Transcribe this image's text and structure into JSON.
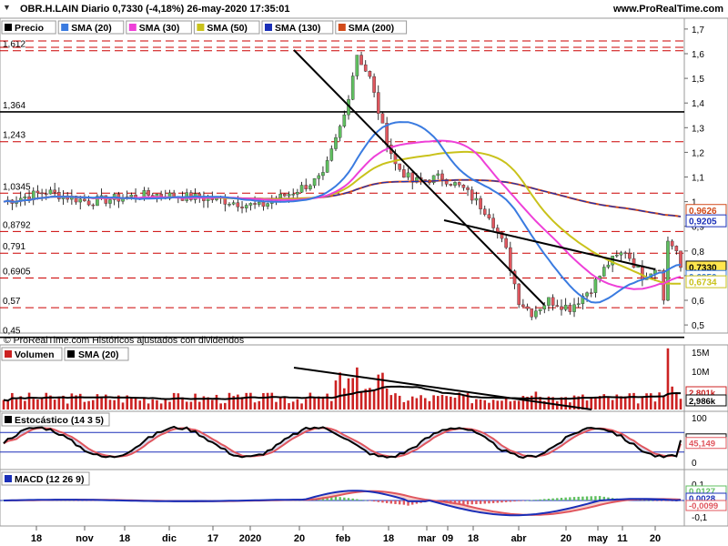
{
  "header": {
    "title": "OBR.H.LAIN Diario 0,7330 (-4,18%) 26-may-2020 17:35:01",
    "site": "www.ProRealTime.com",
    "menu_icon": "caret-down-icon"
  },
  "colors": {
    "price_up": "#5fbf5f",
    "price_down": "#e0565e",
    "sma20": "#3a7be0",
    "sma30": "#ee40d8",
    "sma50": "#c9c21b",
    "sma130": "#1a2fb8",
    "sma200": "#d14a1a",
    "hline_red": "#cc0000",
    "volume_bar": "#cc2222",
    "volume_sma": "#000000",
    "stoch_k": "#000000",
    "stoch_d": "#e0565e",
    "macd_line": "#1a2fb8",
    "macd_signal": "#e0565e"
  },
  "price_panel": {
    "legend": [
      "Precio",
      "SMA (20)",
      "SMA (30)",
      "SMA (50)",
      "SMA (130)",
      "SMA (200)"
    ],
    "yticks": [
      "1,7",
      "1,6",
      "1,5",
      "1,4",
      "1,3",
      "1,2",
      "1,1",
      "1",
      "0,9",
      "0,8",
      "0,7",
      "0,6",
      "0,5"
    ],
    "left_levels": [
      {
        "label": "1,612"
      },
      {
        "label": "1,364"
      },
      {
        "label": "1,243"
      },
      {
        "label": "1,0345"
      },
      {
        "label": "0,8792"
      },
      {
        "label": "0,791"
      },
      {
        "label": "0,6905"
      },
      {
        "label": "0,57"
      },
      {
        "label": "0,45"
      }
    ],
    "right_badges": [
      {
        "label": "0,9626"
      },
      {
        "label": "0,9205"
      },
      {
        "label": "0,7330"
      },
      {
        "label": "0,6950"
      },
      {
        "label": "0,6734"
      }
    ],
    "footer": "© ProRealTime.com Históricos ajustados con dividendos"
  },
  "volume_panel": {
    "legend": [
      "Volumen",
      "SMA (20)"
    ],
    "yticks": [
      "15M",
      "10M",
      "5M"
    ],
    "right_badges": [
      {
        "label": "2,801k"
      },
      {
        "label": "2,986k"
      }
    ]
  },
  "stoch_panel": {
    "legend": [
      "Estocástico (14 3 5)"
    ],
    "yticks": [
      "100",
      "0"
    ],
    "right_badges": [
      {
        "label": "56,083"
      },
      {
        "label": "45,149"
      }
    ]
  },
  "macd_panel": {
    "legend": [
      "MACD (12 26 9)"
    ],
    "yticks": [
      "0,1",
      "-0,1"
    ],
    "right_badges": [
      {
        "label": "0,0127"
      },
      {
        "label": "0,0028"
      },
      {
        "label": "-0,0099"
      }
    ]
  },
  "x_axis": {
    "labels": [
      "18",
      "nov",
      "18",
      "dic",
      "17",
      "2020",
      "20",
      "feb",
      "18",
      "mar",
      "09",
      "18",
      "abr",
      "20",
      "may",
      "11",
      "20"
    ]
  },
  "chart_data": {
    "type": "line",
    "title": "OBR.H.LAIN Diario",
    "xlabel": "",
    "ylabel": "",
    "ylim": [
      0.45,
      1.75
    ],
    "grid": false,
    "x_range": [
      "2019-10-18",
      "2020-05-26"
    ],
    "series": [
      {
        "name": "Precio",
        "x": [
          "2019-10-18",
          "2019-11-18",
          "2019-12-18",
          "2020-01-17",
          "2020-01-30",
          "2020-02-04",
          "2020-02-18",
          "2020-03-09",
          "2020-03-18",
          "2020-04-01",
          "2020-04-20",
          "2020-05-11",
          "2020-05-20",
          "2020-05-26"
        ],
        "values": [
          1.0,
          1.02,
          1.03,
          1.02,
          1.6,
          1.35,
          1.12,
          0.98,
          0.52,
          0.62,
          0.78,
          0.7,
          0.82,
          0.733
        ]
      },
      {
        "name": "SMA (20)",
        "values": [
          1.0,
          1.01,
          1.02,
          1.03,
          1.18,
          1.24,
          1.2,
          1.0,
          0.78,
          0.62,
          0.68,
          0.7,
          0.69,
          0.695
        ]
      },
      {
        "name": "SMA (30)",
        "values": [
          1.0,
          1.01,
          1.02,
          1.03,
          1.12,
          1.18,
          1.18,
          1.05,
          0.82,
          0.68,
          0.66,
          0.68,
          0.68,
          0.68
        ]
      },
      {
        "name": "SMA (50)",
        "values": [
          1.0,
          1.0,
          1.01,
          1.02,
          1.06,
          1.1,
          1.12,
          1.08,
          0.92,
          0.76,
          0.7,
          0.69,
          0.66,
          0.673
        ]
      },
      {
        "name": "SMA (130)",
        "values": [
          1.0,
          1.0,
          1.01,
          1.01,
          1.02,
          1.04,
          1.05,
          1.04,
          0.99,
          0.95,
          0.93,
          0.93,
          0.925,
          0.9205
        ]
      },
      {
        "name": "SMA (200)",
        "values": [
          1.03,
          1.03,
          1.03,
          1.03,
          1.04,
          1.05,
          1.05,
          1.04,
          1.02,
          1.0,
          0.98,
          0.97,
          0.965,
          0.9626
        ]
      }
    ],
    "volume": {
      "ymax": 15000000,
      "current": 2801000,
      "sma20": 2986000
    },
    "stochastic": {
      "k": 56.083,
      "d": 45.149
    },
    "macd": {
      "values": [
        0.0127,
        0.0028,
        -0.0099
      ]
    }
  }
}
